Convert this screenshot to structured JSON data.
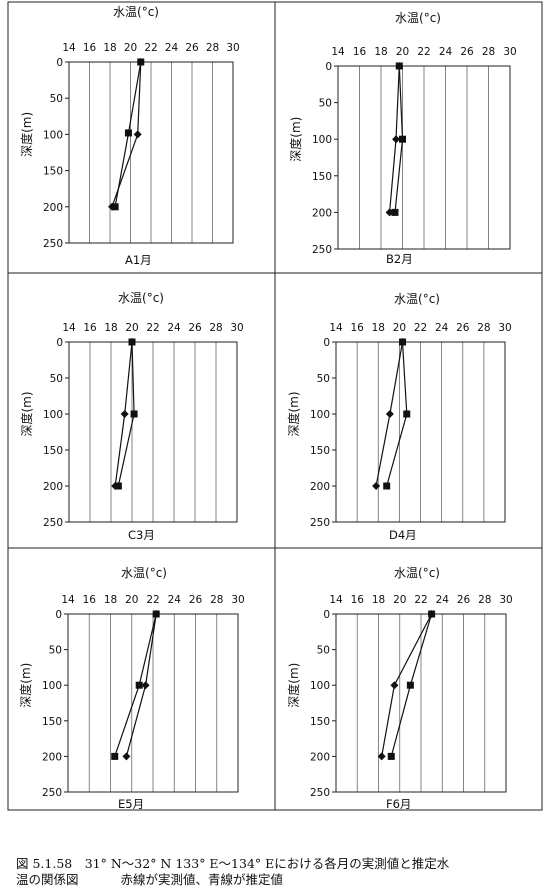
{
  "panel_text": {
    "x_title": "水温(°c)",
    "y_title": "深度(m)"
  },
  "chart_data": [
    {
      "type": "line",
      "label": "A1月",
      "x_ticks": [
        14,
        16,
        18,
        20,
        22,
        24,
        26,
        28,
        30
      ],
      "y_ticks": [
        0,
        50,
        100,
        150,
        200,
        250
      ],
      "xlim": [
        14,
        30
      ],
      "ylim": [
        0,
        250
      ],
      "series": [
        {
          "marker": "square",
          "points": [
            [
              21.0,
              0
            ],
            [
              19.8,
              98
            ],
            [
              18.5,
              200
            ]
          ]
        },
        {
          "marker": "diamond",
          "points": [
            [
              21.0,
              0
            ],
            [
              20.7,
              100
            ],
            [
              18.2,
              200
            ]
          ]
        }
      ]
    },
    {
      "type": "line",
      "label": "B2月",
      "x_ticks": [
        14,
        16,
        18,
        20,
        22,
        24,
        26,
        28,
        30
      ],
      "y_ticks": [
        0,
        50,
        100,
        150,
        200,
        250
      ],
      "xlim": [
        14,
        30
      ],
      "ylim": [
        0,
        250
      ],
      "series": [
        {
          "marker": "square",
          "points": [
            [
              19.7,
              0
            ],
            [
              20.0,
              100
            ],
            [
              19.3,
              200
            ]
          ]
        },
        {
          "marker": "diamond",
          "points": [
            [
              19.7,
              0
            ],
            [
              19.4,
              100
            ],
            [
              18.8,
              200
            ]
          ]
        }
      ]
    },
    {
      "type": "line",
      "label": "C3月",
      "x_ticks": [
        14,
        16,
        18,
        20,
        22,
        24,
        26,
        28,
        30
      ],
      "y_ticks": [
        0,
        50,
        100,
        150,
        200,
        250
      ],
      "xlim": [
        14,
        30
      ],
      "ylim": [
        0,
        250
      ],
      "series": [
        {
          "marker": "square",
          "points": [
            [
              20.0,
              0
            ],
            [
              20.2,
              100
            ],
            [
              18.7,
              200
            ]
          ]
        },
        {
          "marker": "diamond",
          "points": [
            [
              20.0,
              0
            ],
            [
              19.3,
              100
            ],
            [
              18.4,
              200
            ]
          ]
        }
      ]
    },
    {
      "type": "line",
      "label": "D4月",
      "x_ticks": [
        14,
        16,
        18,
        20,
        22,
        24,
        26,
        28,
        30
      ],
      "y_ticks": [
        0,
        50,
        100,
        150,
        200,
        250
      ],
      "xlim": [
        14,
        30
      ],
      "ylim": [
        0,
        250
      ],
      "series": [
        {
          "marker": "square",
          "points": [
            [
              20.3,
              0
            ],
            [
              20.7,
              100
            ],
            [
              18.8,
              200
            ]
          ]
        },
        {
          "marker": "diamond",
          "points": [
            [
              20.3,
              0
            ],
            [
              19.1,
              100
            ],
            [
              17.8,
              200
            ]
          ]
        }
      ]
    },
    {
      "type": "line",
      "label": "E5月",
      "x_ticks": [
        14,
        16,
        18,
        20,
        22,
        24,
        26,
        28,
        30
      ],
      "y_ticks": [
        0,
        50,
        100,
        150,
        200,
        250
      ],
      "xlim": [
        14,
        30
      ],
      "ylim": [
        0,
        250
      ],
      "series": [
        {
          "marker": "square",
          "points": [
            [
              22.3,
              0
            ],
            [
              20.7,
              100
            ],
            [
              18.4,
              200
            ]
          ]
        },
        {
          "marker": "diamond",
          "points": [
            [
              22.3,
              0
            ],
            [
              21.3,
              100
            ],
            [
              19.5,
              200
            ]
          ]
        }
      ]
    },
    {
      "type": "line",
      "label": "F6月",
      "x_ticks": [
        14,
        16,
        18,
        20,
        22,
        24,
        26,
        28,
        30
      ],
      "y_ticks": [
        0,
        50,
        100,
        150,
        200,
        250
      ],
      "xlim": [
        14,
        30
      ],
      "ylim": [
        0,
        250
      ],
      "series": [
        {
          "marker": "square",
          "points": [
            [
              23.0,
              0
            ],
            [
              21.0,
              100
            ],
            [
              19.2,
              200
            ]
          ]
        },
        {
          "marker": "diamond",
          "points": [
            [
              23.0,
              0
            ],
            [
              19.5,
              100
            ],
            [
              18.3,
              200
            ]
          ]
        }
      ]
    }
  ],
  "caption": {
    "line1": "図 5.1.58　31° N～32° N 133° E～134° Eにおける各月の実測値と推定水",
    "line2": "温の関係図",
    "line3": "赤線が実測値、青線が推定値"
  }
}
